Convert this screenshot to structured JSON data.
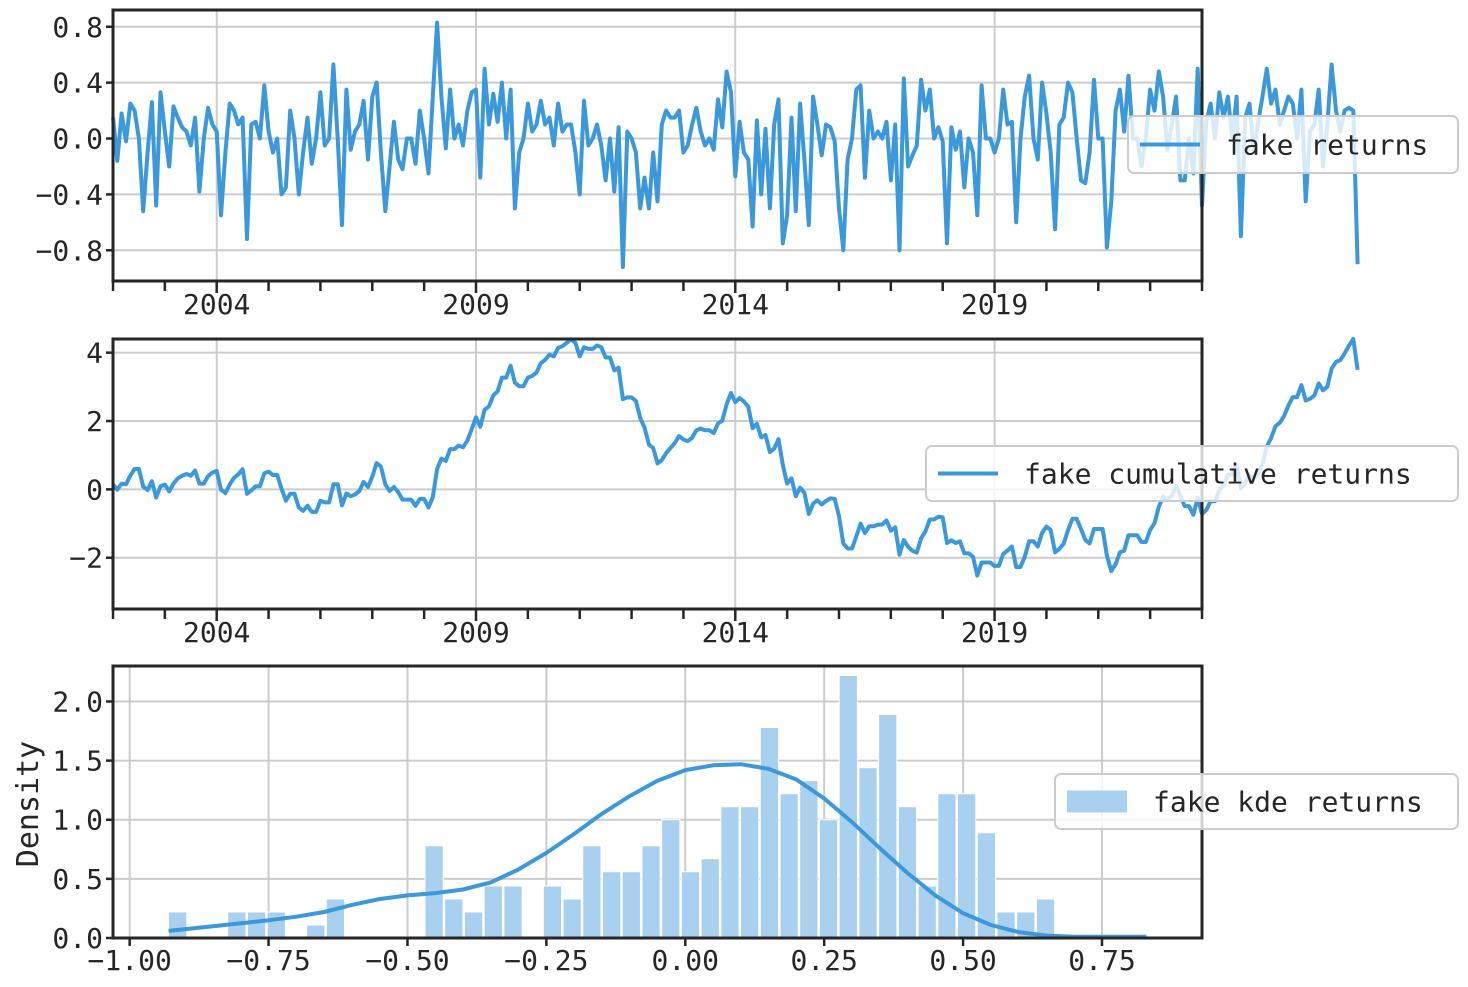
{
  "colors": {
    "series": "#3b98db",
    "bars": "#a9d0ef",
    "grid": "#cccccc",
    "axis": "#262626"
  },
  "chart_data": [
    {
      "type": "line",
      "legend": "fake returns",
      "legend_position": "right",
      "ylim": [
        -1.02,
        0.92
      ],
      "yticks": [
        -0.8,
        -0.4,
        0.0,
        0.4,
        0.8
      ],
      "ytick_labels": [
        "−0.8",
        "−0.4",
        "0.0",
        "0.4",
        "0.8"
      ],
      "xlim": [
        2002.0,
        2023.0
      ],
      "xticks": [
        2004,
        2009,
        2014,
        2019
      ],
      "xtick_labels": [
        "2004",
        "2009",
        "2014",
        "2019"
      ],
      "x_start": "2002-01",
      "x_step_months": 1,
      "grid": true,
      "values": [
        0.15,
        -0.16,
        0.18,
        -0.02,
        0.25,
        0.2,
        0.0,
        -0.52,
        -0.1,
        0.26,
        -0.48,
        0.33,
        0.05,
        -0.2,
        0.23,
        0.15,
        0.08,
        0.05,
        -0.05,
        0.15,
        -0.38,
        0.0,
        0.22,
        0.1,
        0.05,
        -0.55,
        -0.1,
        0.25,
        0.2,
        0.1,
        0.15,
        -0.72,
        0.1,
        0.12,
        0.0,
        0.38,
        0.05,
        -0.1,
        0.0,
        -0.4,
        -0.35,
        0.2,
        0.0,
        -0.4,
        -0.1,
        0.15,
        -0.18,
        0.0,
        0.33,
        -0.05,
        0.0,
        0.53,
        0.0,
        -0.62,
        0.35,
        -0.08,
        0.05,
        0.1,
        0.27,
        -0.15,
        0.3,
        0.4,
        -0.1,
        -0.52,
        -0.2,
        0.12,
        -0.15,
        -0.22,
        0.0,
        0.0,
        -0.18,
        0.2,
        0.0,
        -0.25,
        0.3,
        0.83,
        0.3,
        -0.07,
        0.35,
        0.0,
        0.1,
        -0.05,
        0.2,
        0.33,
        0.35,
        -0.28,
        0.5,
        0.1,
        0.32,
        0.12,
        0.4,
        0.0,
        0.35,
        -0.5,
        -0.1,
        0.0,
        0.25,
        0.05,
        0.1,
        0.27,
        0.1,
        0.15,
        -0.05,
        0.25,
        0.05,
        0.1,
        0.1,
        -0.1,
        -0.4,
        0.27,
        -0.05,
        0.0,
        0.1,
        -0.05,
        -0.3,
        0.0,
        -0.38,
        0.08,
        -0.92,
        0.05,
        0.0,
        -0.1,
        -0.5,
        -0.28,
        -0.5,
        -0.1,
        -0.45,
        0.1,
        0.2,
        0.15,
        0.15,
        0.2,
        -0.1,
        -0.05,
        0.1,
        0.22,
        0.05,
        -0.05,
        0.0,
        -0.08,
        0.28,
        0.08,
        0.48,
        0.33,
        -0.27,
        0.12,
        -0.1,
        -0.15,
        -0.63,
        0.13,
        -0.4,
        0.07,
        -0.5,
        0.1,
        0.28,
        -0.75,
        -0.55,
        0.15,
        -0.52,
        0.25,
        -0.15,
        -0.62,
        0.3,
        0.1,
        -0.12,
        0.1,
        0.08,
        -0.02,
        -0.5,
        -0.8,
        -0.15,
        0.0,
        0.35,
        0.38,
        -0.28,
        0.2,
        0.0,
        0.05,
        0.0,
        0.12,
        -0.3,
        0.1,
        -0.8,
        0.43,
        -0.2,
        -0.12,
        -0.05,
        0.42,
        0.2,
        0.35,
        0.0,
        0.08,
        -0.02,
        -0.75,
        0.08,
        -0.08,
        0.05,
        -0.35,
        0.0,
        -0.1,
        -0.55,
        0.38,
        0.0,
        0.0,
        -0.1,
        0.0,
        0.35,
        0.1,
        0.12,
        -0.6,
        0.0,
        0.3,
        0.45,
        0.0,
        -0.15,
        0.4,
        0.18,
        -0.1,
        -0.65,
        0.1,
        0.15,
        0.4,
        0.33,
        0.0,
        -0.3,
        -0.32,
        -0.1,
        0.42,
        0.0,
        0.0,
        -0.78,
        -0.45,
        0.2,
        0.35,
        0.05,
        0.45,
        0.0,
        0.0,
        -0.2,
        0.0,
        0.35,
        0.2,
        0.48,
        0.3,
        -0.08,
        0.1,
        0.3,
        -0.3,
        -0.3,
        0.0,
        -0.25,
        0.5,
        -0.48,
        0.12,
        0.25,
        0.0,
        0.33,
        0.15,
        0.3,
        0.0,
        0.3,
        -0.7,
        0.15,
        0.25,
        -0.1,
        0.12,
        0.3,
        0.5,
        0.25,
        0.35,
        0.1,
        0.2,
        0.3,
        0.25,
        0.0,
        0.35,
        -0.45,
        0.05,
        0.1,
        0.35,
        -0.2,
        0.1,
        0.53,
        0.2,
        0.05,
        0.2,
        0.22,
        0.2,
        -0.9
      ]
    },
    {
      "type": "line",
      "legend": "fake cumulative returns",
      "legend_position": "right",
      "ylim": [
        -3.5,
        4.4
      ],
      "yticks": [
        -2,
        0,
        2,
        4
      ],
      "ytick_labels": [
        "−2",
        "0",
        "2",
        "4"
      ],
      "xlim": [
        2002.0,
        2023.0
      ],
      "xticks": [
        2004,
        2009,
        2014,
        2019
      ],
      "xtick_labels": [
        "2004",
        "2009",
        "2014",
        "2019"
      ],
      "x_start": "2002-01",
      "x_step_months": 1,
      "grid": true,
      "values": []
    },
    {
      "type": "bar",
      "legend": "fake kde returns",
      "legend_position": "right",
      "ylabel": "Density",
      "xlim": [
        -1.03,
        0.93
      ],
      "ylim": [
        0.0,
        2.3
      ],
      "yticks": [
        0.0,
        0.5,
        1.0,
        1.5,
        2.0
      ],
      "ytick_labels": [
        "0.0",
        "0.5",
        "1.0",
        "1.5",
        "2.0"
      ],
      "xticks": [
        -1.0,
        -0.75,
        -0.5,
        -0.25,
        0.0,
        0.25,
        0.5,
        0.75
      ],
      "xtick_labels": [
        "−1.00",
        "−0.75",
        "−0.50",
        "−0.25",
        "0.00",
        "0.25",
        "0.50",
        "0.75"
      ],
      "grid": true,
      "bin_start": -0.93,
      "bin_width": 0.0355,
      "densities": [
        0.22,
        0.0,
        0.0,
        0.22,
        0.22,
        0.22,
        0.0,
        0.11,
        0.33,
        0.0,
        0.0,
        0.0,
        0.0,
        0.78,
        0.33,
        0.22,
        0.44,
        0.44,
        0.0,
        0.44,
        0.33,
        0.78,
        0.56,
        0.56,
        0.78,
        1.0,
        0.56,
        0.67,
        1.11,
        1.11,
        1.78,
        1.22,
        1.33,
        1.0,
        2.22,
        1.44,
        1.89,
        1.11,
        0.44,
        1.22,
        1.22,
        0.89,
        0.22,
        0.22,
        0.33,
        0.0,
        0.0,
        0.0,
        0.0,
        0.0,
        0.0,
        0.0,
        0.0,
        0.0,
        0.0,
        0.0,
        0.0,
        0.0,
        0.0,
        0.0,
        0.0,
        0.0,
        0.0,
        0.0,
        0.0,
        0.0,
        0.0,
        0.0,
        0.0,
        0.11
      ],
      "kde_x": [
        -0.93,
        -0.85,
        -0.75,
        -0.7,
        -0.65,
        -0.6,
        -0.55,
        -0.5,
        -0.45,
        -0.4,
        -0.35,
        -0.3,
        -0.25,
        -0.2,
        -0.15,
        -0.1,
        -0.05,
        0.0,
        0.05,
        0.1,
        0.15,
        0.2,
        0.25,
        0.3,
        0.35,
        0.4,
        0.45,
        0.5,
        0.55,
        0.6,
        0.65,
        0.7,
        0.75,
        0.8,
        0.83
      ],
      "kde_y": [
        0.06,
        0.1,
        0.15,
        0.18,
        0.22,
        0.28,
        0.33,
        0.36,
        0.38,
        0.41,
        0.47,
        0.58,
        0.72,
        0.88,
        1.05,
        1.2,
        1.33,
        1.42,
        1.46,
        1.47,
        1.43,
        1.34,
        1.18,
        0.98,
        0.76,
        0.55,
        0.36,
        0.21,
        0.11,
        0.05,
        0.02,
        0.01,
        0.01,
        0.01,
        0.01
      ]
    }
  ]
}
